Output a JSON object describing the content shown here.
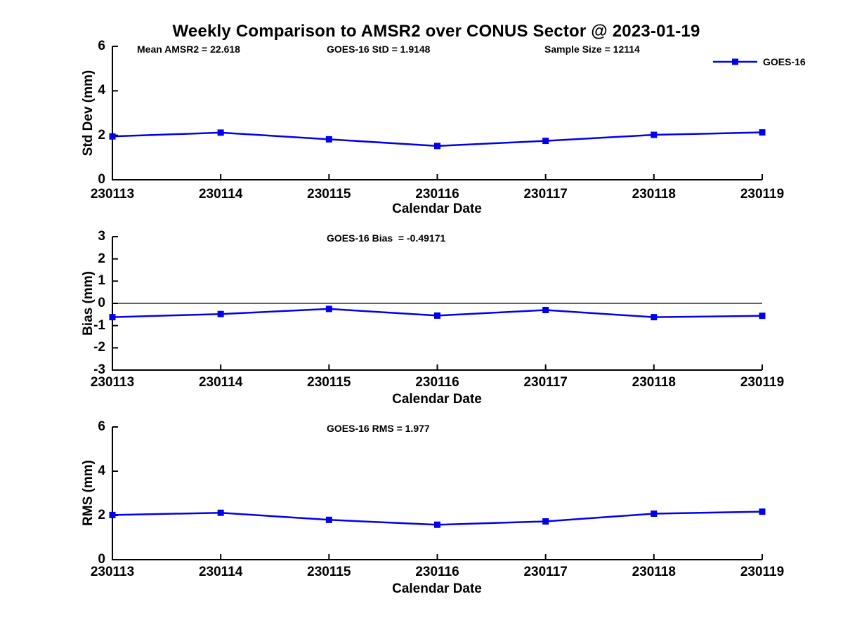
{
  "title": "Weekly Comparison to AMSR2 over CONUS Sector @ 2023-01-19",
  "legend": {
    "label": "GOES-16"
  },
  "colors": {
    "series": "#0000EE",
    "axis": "#000000"
  },
  "chart_data": [
    {
      "type": "line",
      "id": "std-dev",
      "ylabel": "Std Dev (mm)",
      "xlabel": "Calendar Date",
      "ylim": [
        0,
        6
      ],
      "yticks": [
        0,
        2,
        4,
        6
      ],
      "grid": false,
      "legend_position": "top-right",
      "categories": [
        "230113",
        "230114",
        "230115",
        "230116",
        "230117",
        "230118",
        "230119"
      ],
      "series": [
        {
          "name": "GOES-16",
          "color": "#0000EE",
          "marker": "square",
          "values": [
            1.95,
            2.12,
            1.82,
            1.52,
            1.75,
            2.02,
            2.13
          ]
        }
      ],
      "annotations": [
        "Mean AMSR2 = 22.618",
        "GOES-16 StD = 1.9148",
        "Sample Size = 12114"
      ],
      "zero_line": false
    },
    {
      "type": "line",
      "id": "bias",
      "ylabel": "Bias (mm)",
      "xlabel": "Calendar Date",
      "ylim": [
        -3,
        3
      ],
      "yticks": [
        -3,
        -2,
        -1,
        0,
        1,
        2,
        3
      ],
      "grid": false,
      "categories": [
        "230113",
        "230114",
        "230115",
        "230116",
        "230117",
        "230118",
        "230119"
      ],
      "series": [
        {
          "name": "GOES-16",
          "color": "#0000EE",
          "marker": "square",
          "values": [
            -0.62,
            -0.48,
            -0.25,
            -0.55,
            -0.3,
            -0.62,
            -0.56
          ]
        }
      ],
      "annotations": [
        "GOES-16 Bias  = -0.49171"
      ],
      "zero_line": true
    },
    {
      "type": "line",
      "id": "rms",
      "ylabel": "RMS (mm)",
      "xlabel": "Calendar Date",
      "ylim": [
        0,
        6
      ],
      "yticks": [
        0,
        2,
        4,
        6
      ],
      "grid": false,
      "categories": [
        "230113",
        "230114",
        "230115",
        "230116",
        "230117",
        "230118",
        "230119"
      ],
      "series": [
        {
          "name": "GOES-16",
          "color": "#0000EE",
          "marker": "square",
          "values": [
            2.02,
            2.12,
            1.8,
            1.58,
            1.73,
            2.08,
            2.17
          ]
        }
      ],
      "annotations": [
        "GOES-16 RMS = 1.977"
      ],
      "zero_line": false
    }
  ]
}
